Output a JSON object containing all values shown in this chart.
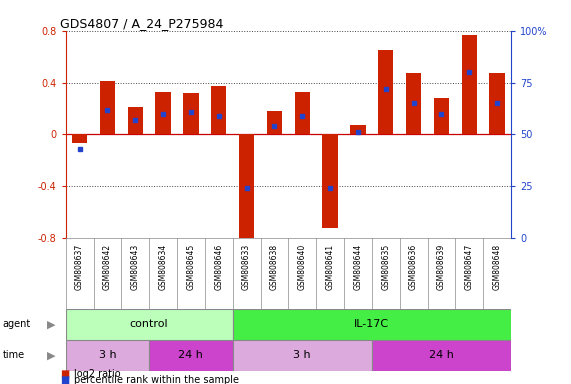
{
  "title": "GDS4807 / A_24_P275984",
  "samples": [
    "GSM808637",
    "GSM808642",
    "GSM808643",
    "GSM808634",
    "GSM808645",
    "GSM808646",
    "GSM808633",
    "GSM808638",
    "GSM808640",
    "GSM808641",
    "GSM808644",
    "GSM808635",
    "GSM808636",
    "GSM808639",
    "GSM808647",
    "GSM808648"
  ],
  "log2_ratio": [
    -0.07,
    0.41,
    0.21,
    0.33,
    0.32,
    0.37,
    -0.83,
    0.18,
    0.33,
    -0.72,
    0.07,
    0.65,
    0.47,
    0.28,
    0.77,
    0.47
  ],
  "percentile": [
    43,
    62,
    57,
    60,
    61,
    59,
    24,
    54,
    59,
    24,
    51,
    72,
    65,
    60,
    80,
    65
  ],
  "ylim": [
    -0.8,
    0.8
  ],
  "yticks": [
    -0.8,
    -0.4,
    0.0,
    0.4,
    0.8
  ],
  "ytick_labels_left": [
    "-0.8",
    "-0.4",
    "0",
    "0.4",
    "0.8"
  ],
  "ytick_labels_right": [
    "0",
    "25",
    "50",
    "75",
    "100%"
  ],
  "bar_color": "#cc2200",
  "dot_color": "#2244cc",
  "zero_line_color": "#cc0000",
  "dotted_line_color": "#444444",
  "agent_groups": [
    {
      "label": "control",
      "start": 0,
      "end": 6,
      "color": "#bbffbb"
    },
    {
      "label": "IL-17C",
      "start": 6,
      "end": 16,
      "color": "#44ee44"
    }
  ],
  "time_groups": [
    {
      "label": "3 h",
      "start": 0,
      "end": 3,
      "color": "#ddaadd"
    },
    {
      "label": "24 h",
      "start": 3,
      "end": 6,
      "color": "#cc44cc"
    },
    {
      "label": "3 h",
      "start": 6,
      "end": 11,
      "color": "#ddaadd"
    },
    {
      "label": "24 h",
      "start": 11,
      "end": 16,
      "color": "#cc44cc"
    }
  ],
  "bg_color": "#ffffff",
  "label_bg_color": "#cccccc",
  "chart_bg_color": "#ffffff"
}
